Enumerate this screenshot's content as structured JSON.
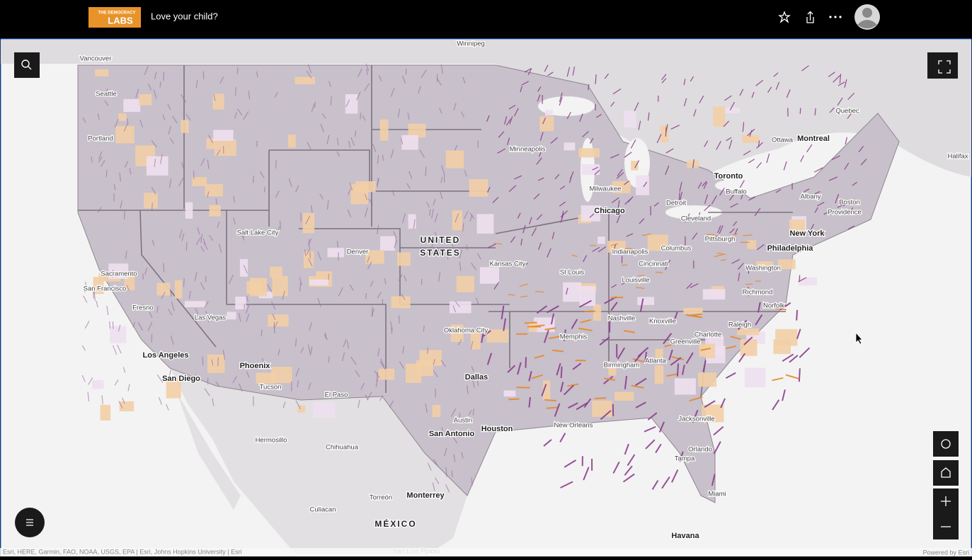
{
  "header": {
    "logo_top": "THE DEMOCRACY",
    "logo_bottom": "LABS",
    "title": "Love your child?"
  },
  "map": {
    "labels": [
      "Vancouver",
      "Seattle",
      "Portland",
      "Sacramento",
      "San Francisco",
      "Fresno",
      "Los Angeles",
      "San Diego",
      "Las Vegas",
      "Phoenix",
      "Tucson",
      "Salt Lake City",
      "Denver",
      "El Paso",
      "Hermosillo",
      "Chihuahua",
      "Culiacan",
      "Torreón",
      "Monterrey",
      "MÉXICO",
      "San Luis Potosí",
      "Winnipeg",
      "UNITED",
      "STATES",
      "Minneapolis",
      "Milwaukee",
      "Chicago",
      "Kansas City",
      "St Louis",
      "Oklahoma City",
      "Dallas",
      "Austin",
      "San Antonio",
      "Houston",
      "New Orleans",
      "Memphis",
      "Nashville",
      "Indianapolis",
      "Cincinnati",
      "Louisville",
      "Columbus",
      "Detroit",
      "Cleveland",
      "Pittsburgh",
      "Knoxville",
      "Atlanta",
      "Birmingham",
      "Charlotte",
      "Greenville",
      "Raleigh",
      "Richmond",
      "Norfolk",
      "Washington",
      "Philadelphia",
      "New York",
      "Providence",
      "Boston",
      "Albany",
      "Buffalo",
      "Toronto",
      "Ottawa",
      "Montreal",
      "Quebec",
      "Halifax",
      "Jacksonville",
      "Orlando",
      "Tampa",
      "Miami",
      "Havana"
    ],
    "attribution": "Esri, HERE, Garmin, FAO, NOAA, USGS, EPA | Esri, Johns Hopkins University | Esri",
    "powered_by": "Powered by Esri"
  }
}
